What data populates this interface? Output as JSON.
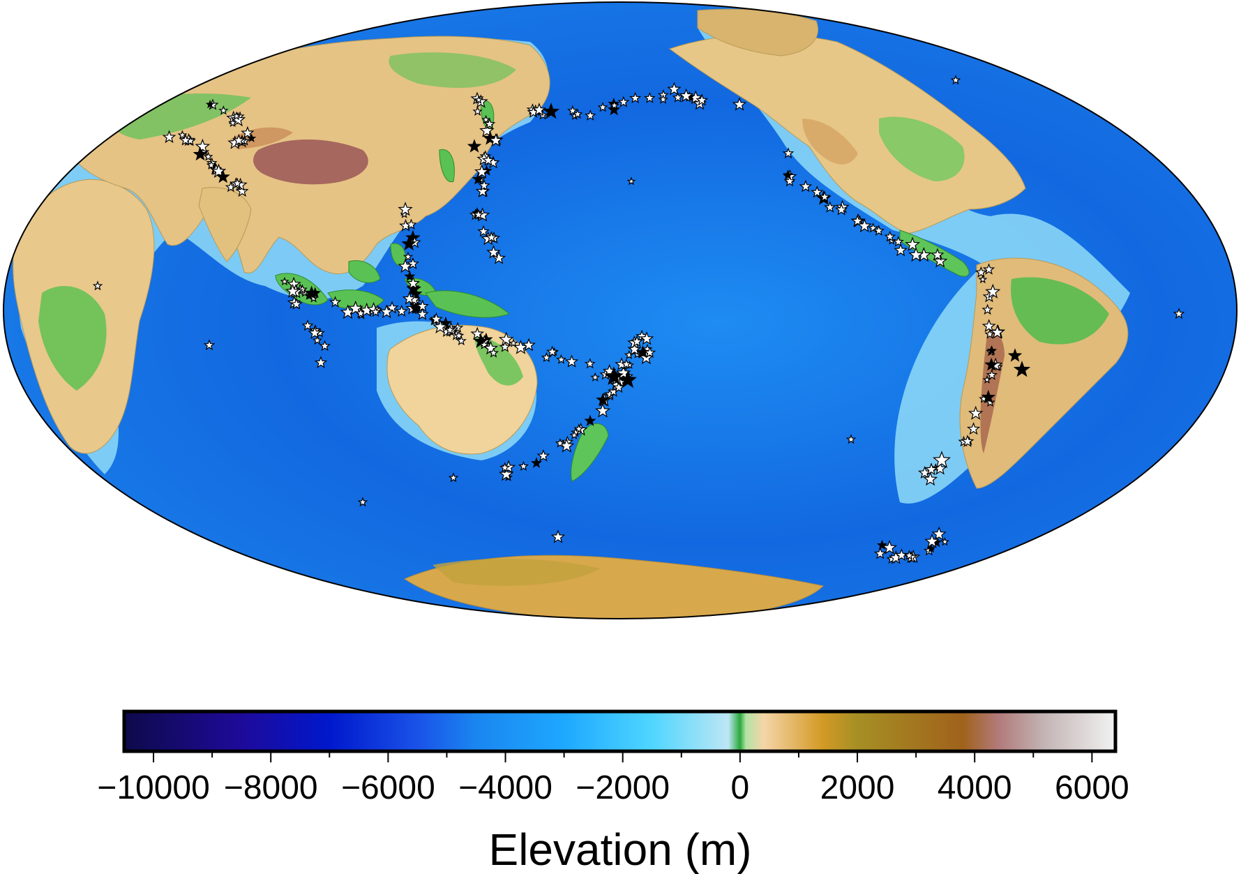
{
  "map": {
    "projection": "Mollweide",
    "colormap": "earth relief (etopo1)",
    "colors": {
      "deep_ocean": "#0b0d6e",
      "ocean_mid": "#0a3ad6",
      "ocean_shallow": "#3aa0ff",
      "shelf": "#9fe6ff",
      "lowland": "#3fbf4a",
      "highland": "#f2d7a3",
      "mountain": "#b58a2a",
      "peak": "#ececec",
      "star_fill": "#ffffff",
      "star_fill_deep": "#000000",
      "star_stroke": "#000000"
    },
    "markers": {
      "symbol": "star",
      "description_visible": false
    }
  },
  "colorbar": {
    "label": "Elevation (m)",
    "ticks": [
      "−10000",
      "−8000",
      "−6000",
      "−4000",
      "−2000",
      "0",
      "2000",
      "4000",
      "6000"
    ],
    "tick_values": [
      -10000,
      -8000,
      -6000,
      -4000,
      -2000,
      0,
      2000,
      4000,
      6000
    ],
    "range": [
      -10500,
      6400
    ],
    "stops": [
      {
        "value": -10500,
        "color": "#0e0a4a"
      },
      {
        "value": -8500,
        "color": "#1e0a9a"
      },
      {
        "value": -7000,
        "color": "#0018cc"
      },
      {
        "value": -5500,
        "color": "#1a52e8"
      },
      {
        "value": -4500,
        "color": "#1a86f0"
      },
      {
        "value": -3000,
        "color": "#1ea8ff"
      },
      {
        "value": -1500,
        "color": "#4fd6ff"
      },
      {
        "value": -200,
        "color": "#bde6f4"
      },
      {
        "value": 0,
        "color": "#2aa83a"
      },
      {
        "value": 100,
        "color": "#b2e3a5"
      },
      {
        "value": 400,
        "color": "#f5d5a8"
      },
      {
        "value": 1400,
        "color": "#d39a26"
      },
      {
        "value": 2000,
        "color": "#a68f24"
      },
      {
        "value": 3800,
        "color": "#a0621c"
      },
      {
        "value": 4400,
        "color": "#b27a7a"
      },
      {
        "value": 5200,
        "color": "#c4b5b5"
      },
      {
        "value": 6400,
        "color": "#f2f2f2"
      }
    ]
  }
}
